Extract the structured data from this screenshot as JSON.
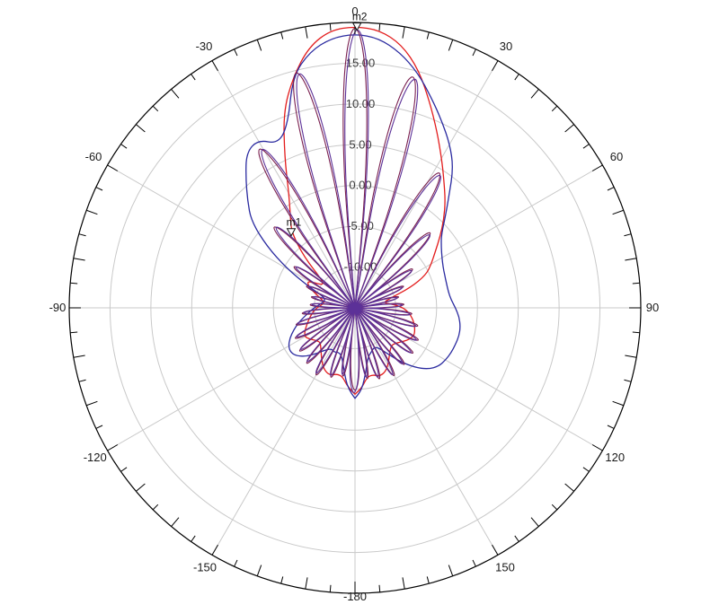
{
  "figure": {
    "background": "#ffffff",
    "grid_color": "#c9c9c9",
    "outline_color": "#000000",
    "tick_color": "#000000",
    "ring_label_color": "#3a3a3a",
    "angle_label_color": "#1a1a1a",
    "marker_color": "#111111"
  },
  "chart_data": {
    "type": "line",
    "subtype": "polar-radiation-pattern",
    "radial_axis": {
      "min": -15,
      "max": 20,
      "step": 5,
      "ring_labels": [
        {
          "value": 15,
          "text": "15.00"
        },
        {
          "value": 10,
          "text": "10.00"
        },
        {
          "value": 5,
          "text": "5.00"
        },
        {
          "value": 0,
          "text": "0.00"
        },
        {
          "value": -5,
          "text": "-5.00"
        },
        {
          "value": -10,
          "text": "-10.00"
        }
      ]
    },
    "angle_axis": {
      "major_tick_deg": 10,
      "minor_tick_deg": 5,
      "spoke_deg": 30,
      "labels": [
        {
          "angle": 0,
          "text": "0"
        },
        {
          "angle": 30,
          "text": "30"
        },
        {
          "angle": 60,
          "text": "60"
        },
        {
          "angle": 90,
          "text": "90"
        },
        {
          "angle": 120,
          "text": "120"
        },
        {
          "angle": 150,
          "text": "150"
        },
        {
          "angle": 180,
          "text": "-180"
        },
        {
          "angle": -150,
          "text": "-150"
        },
        {
          "angle": -120,
          "text": "-120"
        },
        {
          "angle": -90,
          "text": "-90"
        },
        {
          "angle": -60,
          "text": "-60"
        },
        {
          "angle": -30,
          "text": "-30"
        }
      ]
    },
    "series": [
      {
        "name": "red-envelope",
        "color": "#e31c1c",
        "width": 1.3,
        "points": [
          [
            -180,
            -4.4
          ],
          [
            -175,
            -5.2
          ],
          [
            -170,
            -6.4
          ],
          [
            -165,
            -6.6
          ],
          [
            -160,
            -6.2
          ],
          [
            -155,
            -6.4
          ],
          [
            -150,
            -7.0
          ],
          [
            -145,
            -7.8
          ],
          [
            -140,
            -8.5
          ],
          [
            -135,
            -9.0
          ],
          [
            -130,
            -8.8
          ],
          [
            -125,
            -8.3
          ],
          [
            -120,
            -7.9
          ],
          [
            -115,
            -8.2
          ],
          [
            -110,
            -8.7
          ],
          [
            -105,
            -9.1
          ],
          [
            -100,
            -9.5
          ],
          [
            -95,
            -9.9
          ],
          [
            -90,
            -10.3
          ],
          [
            -85,
            -10.9
          ],
          [
            -80,
            -11.2
          ],
          [
            -75,
            -10.7
          ],
          [
            -70,
            -9.8
          ],
          [
            -65,
            -8.7
          ],
          [
            -60,
            -8.3
          ],
          [
            -55,
            -10.2
          ],
          [
            -50,
            -9.8
          ],
          [
            -45,
            -6.2
          ],
          [
            -40,
            -2.9
          ],
          [
            -35,
            -1.2
          ],
          [
            -30,
            1.2
          ],
          [
            -25,
            5.4
          ],
          [
            -20,
            10.6
          ],
          [
            -15,
            14.3
          ],
          [
            -10,
            17.5
          ],
          [
            -5,
            19.2
          ],
          [
            0,
            19.5
          ],
          [
            5,
            19.2
          ],
          [
            10,
            17.8
          ],
          [
            15,
            15.2
          ],
          [
            20,
            11.8
          ],
          [
            25,
            8.8
          ],
          [
            30,
            6.2
          ],
          [
            35,
            4.0
          ],
          [
            40,
            2.2
          ],
          [
            45,
            0.4
          ],
          [
            50,
            -1.4
          ],
          [
            55,
            -3.0
          ],
          [
            60,
            -4.2
          ],
          [
            65,
            -5.4
          ],
          [
            70,
            -7.8
          ],
          [
            75,
            -10.6
          ],
          [
            80,
            -11.5
          ],
          [
            85,
            -10.2
          ],
          [
            90,
            -9.1
          ],
          [
            95,
            -8.4
          ],
          [
            100,
            -7.9
          ],
          [
            105,
            -7.5
          ],
          [
            110,
            -7.2
          ],
          [
            115,
            -7.0
          ],
          [
            120,
            -7.3
          ],
          [
            125,
            -7.8
          ],
          [
            130,
            -8.3
          ],
          [
            135,
            -8.6
          ],
          [
            140,
            -8.3
          ],
          [
            145,
            -7.7
          ],
          [
            150,
            -6.9
          ],
          [
            155,
            -6.3
          ],
          [
            160,
            -6.1
          ],
          [
            165,
            -6.5
          ],
          [
            170,
            -6.4
          ],
          [
            175,
            -5.2
          ],
          [
            180,
            -4.4
          ]
        ]
      },
      {
        "name": "navy-envelope",
        "color": "#2b2ba0",
        "width": 1.3,
        "points": [
          [
            -180,
            -3.9
          ],
          [
            -175,
            -5.0
          ],
          [
            -170,
            -7.2
          ],
          [
            -165,
            -8.8
          ],
          [
            -160,
            -9.2
          ],
          [
            -155,
            -9.0
          ],
          [
            -150,
            -9.2
          ],
          [
            -145,
            -8.7
          ],
          [
            -140,
            -7.7
          ],
          [
            -135,
            -6.6
          ],
          [
            -130,
            -5.8
          ],
          [
            -125,
            -5.4
          ],
          [
            -120,
            -5.6
          ],
          [
            -115,
            -6.2
          ],
          [
            -110,
            -7.0
          ],
          [
            -105,
            -7.8
          ],
          [
            -100,
            -8.7
          ],
          [
            -95,
            -9.4
          ],
          [
            -90,
            -10.0
          ],
          [
            -85,
            -10.6
          ],
          [
            -80,
            -11.0
          ],
          [
            -75,
            -11.2
          ],
          [
            -70,
            -10.8
          ],
          [
            -65,
            -8.6
          ],
          [
            -60,
            -5.4
          ],
          [
            -55,
            -1.8
          ],
          [
            -50,
            1.6
          ],
          [
            -45,
            3.6
          ],
          [
            -40,
            5.8
          ],
          [
            -35,
            8.2
          ],
          [
            -30,
            8.8
          ],
          [
            -25,
            7.2
          ],
          [
            -20,
            9.0
          ],
          [
            -15,
            14.4
          ],
          [
            -10,
            16.9
          ],
          [
            -5,
            18.2
          ],
          [
            0,
            18.6
          ],
          [
            5,
            18.2
          ],
          [
            10,
            16.8
          ],
          [
            15,
            14.8
          ],
          [
            20,
            12.4
          ],
          [
            25,
            10.2
          ],
          [
            30,
            8.2
          ],
          [
            35,
            6.0
          ],
          [
            40,
            2.9
          ],
          [
            45,
            0.6
          ],
          [
            50,
            -1.2
          ],
          [
            55,
            -2.1
          ],
          [
            60,
            -2.7
          ],
          [
            65,
            -3.1
          ],
          [
            70,
            -3.3
          ],
          [
            75,
            -3.4
          ],
          [
            80,
            -3.4
          ],
          [
            85,
            -3.2
          ],
          [
            90,
            -2.7
          ],
          [
            95,
            -2.2
          ],
          [
            100,
            -1.9
          ],
          [
            105,
            -1.8
          ],
          [
            110,
            -1.9
          ],
          [
            115,
            -2.0
          ],
          [
            120,
            -2.2
          ],
          [
            125,
            -2.5
          ],
          [
            130,
            -3.3
          ],
          [
            135,
            -4.7
          ],
          [
            140,
            -6.4
          ],
          [
            145,
            -8.2
          ],
          [
            150,
            -9.4
          ],
          [
            155,
            -9.6
          ],
          [
            160,
            -9.2
          ],
          [
            165,
            -8.8
          ],
          [
            170,
            -7.2
          ],
          [
            175,
            -5.0
          ],
          [
            180,
            -3.9
          ]
        ]
      },
      {
        "name": "dark-red-array",
        "color": "#7a1f4f",
        "width": 1.1,
        "lobes": [
          [
            0,
            19.3,
            6.5
          ],
          [
            -14,
            14.7,
            7
          ],
          [
            14,
            14.2,
            7
          ],
          [
            -31,
            7.7,
            7
          ],
          [
            32,
            4.5,
            7
          ],
          [
            -45,
            -1.0,
            6.5
          ],
          [
            45,
            -2.0,
            6.5
          ],
          [
            -56,
            -6.0,
            6
          ],
          [
            56,
            -6.5,
            6
          ],
          [
            -66,
            -8.5,
            5.5
          ],
          [
            66,
            -8.5,
            5.5
          ],
          [
            -76,
            -9.5,
            5.5
          ],
          [
            76,
            -9.5,
            5.5
          ],
          [
            -86,
            -9.5,
            5.5
          ],
          [
            86,
            -9.0,
            5.5
          ],
          [
            -96,
            -8.5,
            5.5
          ],
          [
            96,
            -8.0,
            5.5
          ],
          [
            -106,
            -7.5,
            5.5
          ],
          [
            106,
            -7.0,
            5.5
          ],
          [
            -117,
            -6.8,
            5.5
          ],
          [
            117,
            -6.3,
            5.5
          ],
          [
            -128,
            -6.4,
            5.5
          ],
          [
            128,
            -6.0,
            5.5
          ],
          [
            -139,
            -6.0,
            5.5
          ],
          [
            139,
            -5.8,
            5.5
          ],
          [
            -150,
            -5.5,
            5.5
          ],
          [
            150,
            -5.4,
            5.5
          ],
          [
            -161,
            -6.0,
            5.5
          ],
          [
            161,
            -5.8,
            5.5
          ],
          [
            -170,
            -6.5,
            5
          ],
          [
            170,
            -6.2,
            5
          ],
          [
            180,
            -4.9,
            8
          ]
        ]
      },
      {
        "name": "purple-array",
        "color": "#5c3198",
        "width": 1.1,
        "lobes": [
          [
            0.5,
            19.1,
            6.5
          ],
          [
            -13.3,
            14.5,
            7
          ],
          [
            14.7,
            14.0,
            7
          ],
          [
            -30.3,
            7.5,
            7
          ],
          [
            32.7,
            4.3,
            7
          ],
          [
            -44.3,
            -1.2,
            6.5
          ],
          [
            45.7,
            -2.2,
            6.5
          ],
          [
            -55.3,
            -6.2,
            6
          ],
          [
            56.7,
            -6.7,
            6
          ],
          [
            -65.3,
            -8.7,
            5.5
          ],
          [
            66.7,
            -8.7,
            5.5
          ],
          [
            -75.3,
            -9.7,
            5.5
          ],
          [
            76.7,
            -9.7,
            5.5
          ],
          [
            -85.3,
            -9.7,
            5.5
          ],
          [
            86.7,
            -9.2,
            5.5
          ],
          [
            -95.3,
            -8.7,
            5.5
          ],
          [
            96.7,
            -8.2,
            5.5
          ],
          [
            -105.3,
            -7.7,
            5.5
          ],
          [
            106.7,
            -7.2,
            5.5
          ],
          [
            -116.3,
            -7.0,
            5.5
          ],
          [
            117.7,
            -6.5,
            5.5
          ],
          [
            -127.3,
            -6.6,
            5.5
          ],
          [
            128.7,
            -6.2,
            5.5
          ],
          [
            -138.3,
            -6.2,
            5.5
          ],
          [
            139.7,
            -6.0,
            5.5
          ],
          [
            -149.3,
            -5.7,
            5.5
          ],
          [
            150.7,
            -5.6,
            5.5
          ],
          [
            -160.3,
            -6.2,
            5.5
          ],
          [
            161.7,
            -6.0,
            5.5
          ],
          [
            -169.3,
            -6.7,
            5
          ],
          [
            170.7,
            -6.4,
            5
          ],
          [
            180.7,
            -4.6,
            8
          ]
        ]
      }
    ],
    "markers": [
      {
        "label": "m1",
        "angle": -41.5,
        "value": -3.2
      },
      {
        "label": "m2",
        "angle": 0.4,
        "value": 19.05
      }
    ]
  }
}
